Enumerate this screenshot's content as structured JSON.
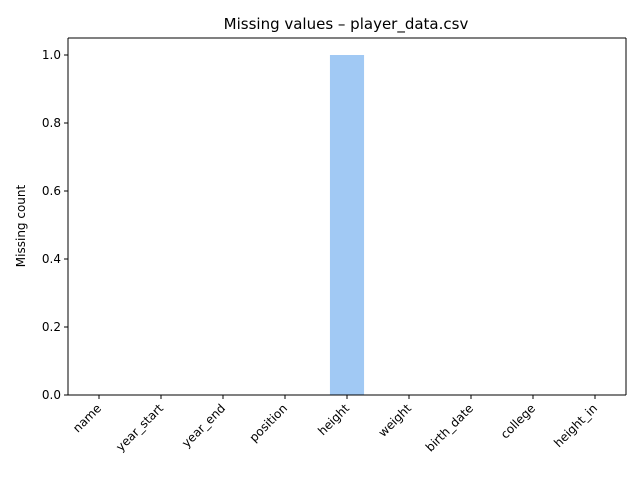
{
  "chart_data": {
    "type": "bar",
    "title": "Missing values – player_data.csv",
    "xlabel": "",
    "ylabel": "Missing count",
    "categories": [
      "name",
      "year_start",
      "year_end",
      "position",
      "height",
      "weight",
      "birth_date",
      "college",
      "height_in"
    ],
    "values": [
      0,
      0,
      0,
      0,
      1,
      0,
      0,
      0,
      0
    ],
    "ylim": [
      0,
      1.05
    ],
    "yticks": [
      "0.0",
      "0.2",
      "0.4",
      "0.6",
      "0.8",
      "1.0"
    ],
    "bar_color": "#a1c9f4",
    "grid": false,
    "legend": "none"
  }
}
